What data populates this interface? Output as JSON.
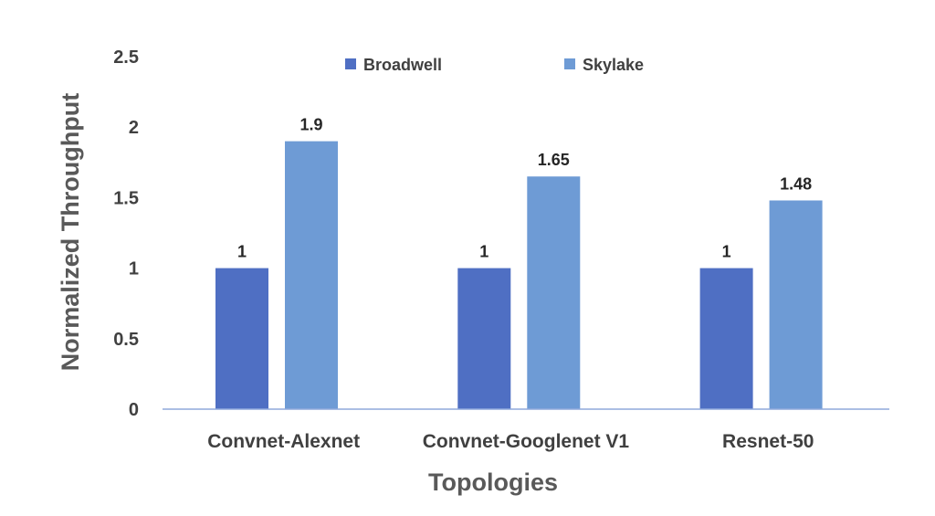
{
  "chart_data": {
    "type": "bar",
    "title": "",
    "xlabel": "Topologies",
    "ylabel": "Normalized Throughput",
    "categories": [
      "Convnet-Alexnet",
      "Convnet-Googlenet V1",
      "Resnet-50"
    ],
    "series": [
      {
        "name": "Broadwell",
        "values": [
          1,
          1,
          1
        ],
        "labels": [
          "1",
          "1",
          "1"
        ],
        "color": "#4F6FC3"
      },
      {
        "name": "Skylake",
        "values": [
          1.9,
          1.65,
          1.48
        ],
        "labels": [
          "1.9",
          "1.65",
          "1.48"
        ],
        "color": "#6E9BD5"
      }
    ],
    "ylim": [
      0,
      2.5
    ],
    "yticks": [
      "0",
      "0.5",
      "1",
      "1.5",
      "2",
      "2.5"
    ],
    "grid": false,
    "legend_position": "top",
    "axis_color": "#8FA9DC"
  }
}
